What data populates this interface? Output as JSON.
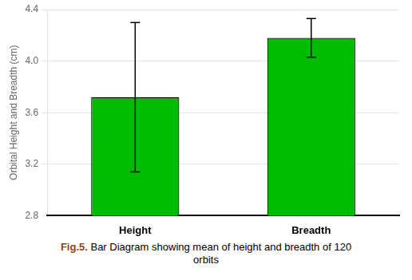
{
  "chart_data": {
    "type": "bar",
    "categories": [
      "Height",
      "Breadth"
    ],
    "values": [
      3.72,
      4.18
    ],
    "errors": [
      0.58,
      0.15
    ],
    "color": "#00bb00",
    "ylabel": "Orbital Height and Breadth (cm)",
    "ylim": [
      2.8,
      4.4
    ],
    "yticks": [
      2.8,
      3.2,
      3.6,
      {
        "value": 4.0,
        "label": "4.0"
      },
      4.4
    ],
    "grid": true,
    "annotations": [
      {
        "text": "Fig.5.",
        "color": "#8B4513"
      },
      {
        "text": " Bar Diagram showing mean of height and breadth of 120\norbits"
      }
    ]
  }
}
